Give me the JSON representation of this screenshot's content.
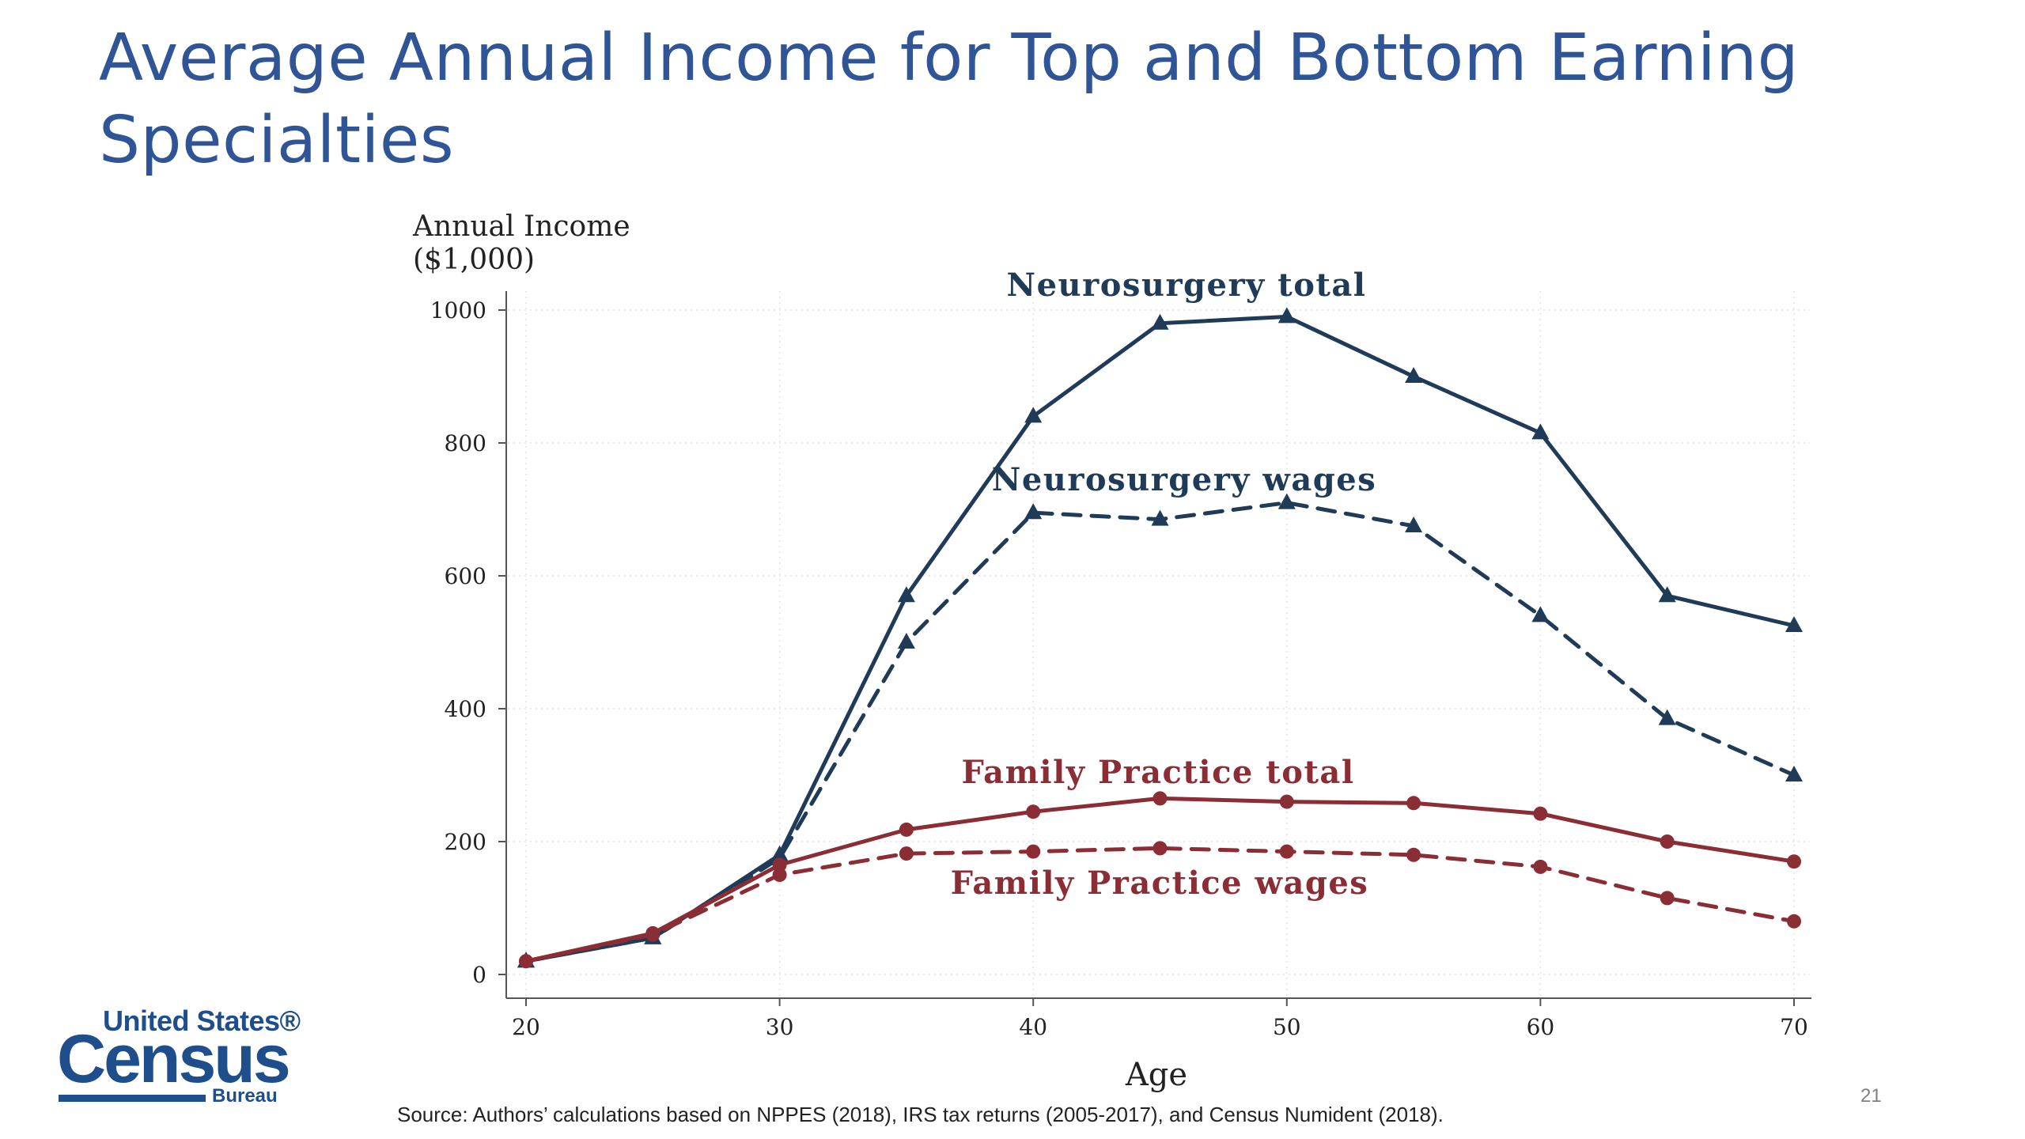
{
  "slide": {
    "title": "Average Annual Income for Top and Bottom Earning Specialties",
    "source": "Source: Authors’ calculations based on NPPES (2018), IRS tax returns (2005-2017), and Census Numident (2018).",
    "page_number": "21",
    "logo": {
      "line1": "United States®",
      "line2": "Census",
      "line3": "Bureau"
    }
  },
  "colors": {
    "title": "#2f5597",
    "neurosurgery": "#1f3b57",
    "family_practice": "#8b2d35",
    "logo": "#1f4e8c"
  },
  "chart_data": {
    "type": "line",
    "title": "",
    "ylabel_line1": "Annual Income",
    "ylabel_line2": "($1,000)",
    "xlabel": "Age",
    "xlim": [
      20,
      70
    ],
    "ylim": [
      0,
      1000
    ],
    "xticks": [
      "20",
      "30",
      "40",
      "50",
      "60",
      "70"
    ],
    "yticks": [
      "0",
      "200",
      "400",
      "600",
      "800",
      "1000"
    ],
    "grid": true,
    "legend": "labels placed on lines",
    "x": [
      20,
      25,
      30,
      35,
      40,
      45,
      50,
      55,
      60,
      65,
      70
    ],
    "series": [
      {
        "name": "Neurosurgery total",
        "color": "#1f3b57",
        "dash": "solid",
        "marker": "triangle",
        "values": [
          20,
          55,
          180,
          570,
          840,
          980,
          990,
          900,
          815,
          570,
          525
        ]
      },
      {
        "name": "Neurosurgery wages",
        "color": "#1f3b57",
        "dash": "dashed",
        "marker": "triangle",
        "values": [
          20,
          55,
          175,
          500,
          695,
          685,
          710,
          675,
          540,
          385,
          300
        ]
      },
      {
        "name": "Family Practice total",
        "color": "#8b2d35",
        "dash": "solid",
        "marker": "circle",
        "values": [
          20,
          62,
          165,
          218,
          245,
          265,
          260,
          258,
          242,
          200,
          170
        ]
      },
      {
        "name": "Family Practice wages",
        "color": "#8b2d35",
        "dash": "dashed",
        "marker": "circle",
        "values": [
          20,
          60,
          150,
          182,
          185,
          190,
          185,
          180,
          162,
          115,
          80
        ]
      }
    ]
  }
}
